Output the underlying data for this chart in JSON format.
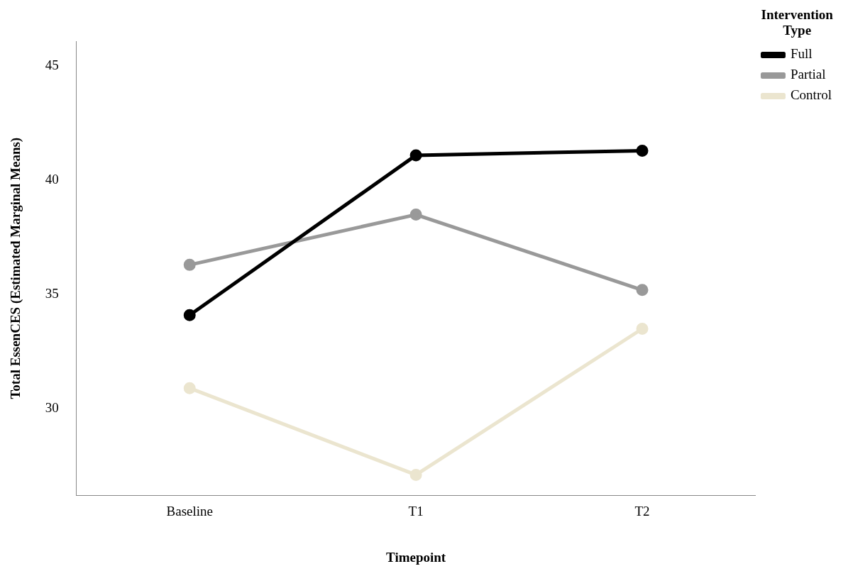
{
  "chart_data": {
    "type": "line",
    "xlabel": "Timepoint",
    "ylabel": "Total EssenCES (Estimated Marginal Means)",
    "legend_title": "Intervention Type",
    "categories": [
      "Baseline",
      "T1",
      "T2"
    ],
    "series": [
      {
        "name": "Full",
        "color": "#000000",
        "values": [
          34.1,
          41.1,
          41.3
        ]
      },
      {
        "name": "Partial",
        "color": "#999999",
        "values": [
          36.3,
          38.5,
          35.2
        ]
      },
      {
        "name": "Control",
        "color": "#ebe5cf",
        "values": [
          30.9,
          27.1,
          33.5
        ]
      }
    ],
    "ylim": [
      26.2,
      46.1
    ],
    "yticks": [
      30,
      35,
      40,
      45
    ],
    "grid": false,
    "legend": "top right",
    "marker": "circle",
    "line_style": "solid"
  }
}
